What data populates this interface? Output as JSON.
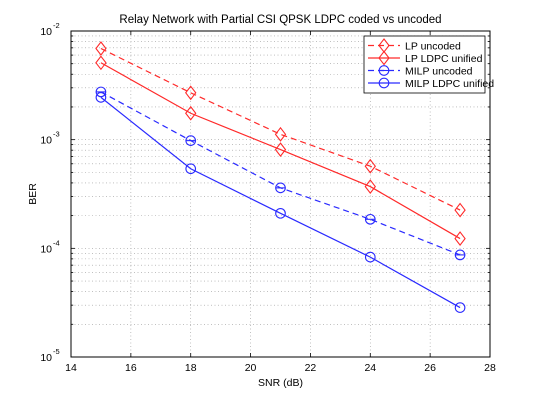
{
  "chart_data": {
    "type": "line",
    "title": "Relay Network with Partial CSI QPSK LDPC coded vs uncoded",
    "xlabel": "SNR (dB)",
    "ylabel": "BER",
    "xlim": [
      14,
      28
    ],
    "ylim": [
      1e-05,
      0.01
    ],
    "yscale": "log",
    "grid": true,
    "legend_position": "top-right",
    "x_ticks": [
      14,
      16,
      18,
      20,
      22,
      24,
      26,
      28
    ],
    "y_ticks": [
      {
        "base": "10",
        "exp": "-5",
        "value": 1e-05
      },
      {
        "base": "10",
        "exp": "-4",
        "value": 0.0001
      },
      {
        "base": "10",
        "exp": "-3",
        "value": 0.001
      },
      {
        "base": "10",
        "exp": "-2",
        "value": 0.01
      }
    ],
    "x": [
      15,
      18,
      21,
      24,
      27
    ],
    "series": [
      {
        "name": "LP uncoded",
        "color": "#ff2a2a",
        "dash": "dashed",
        "marker": "diamond",
        "values": [
          0.0069,
          0.0027,
          0.00112,
          0.00057,
          0.000225
        ]
      },
      {
        "name": "LP LDPC unified",
        "color": "#ff2a2a",
        "dash": "solid",
        "marker": "diamond",
        "values": [
          0.0051,
          0.00175,
          0.00081,
          0.00037,
          0.000123
        ]
      },
      {
        "name": "MILP uncoded",
        "color": "#2a2aff",
        "dash": "dashed",
        "marker": "circle-dash",
        "values": [
          0.00275,
          0.00098,
          0.00036,
          0.000185,
          8.7e-05
        ]
      },
      {
        "name": "MILP LDPC unified",
        "color": "#2a2aff",
        "dash": "solid",
        "marker": "circle",
        "values": [
          0.00245,
          0.00054,
          0.00021,
          8.3e-05,
          2.85e-05
        ]
      }
    ]
  }
}
